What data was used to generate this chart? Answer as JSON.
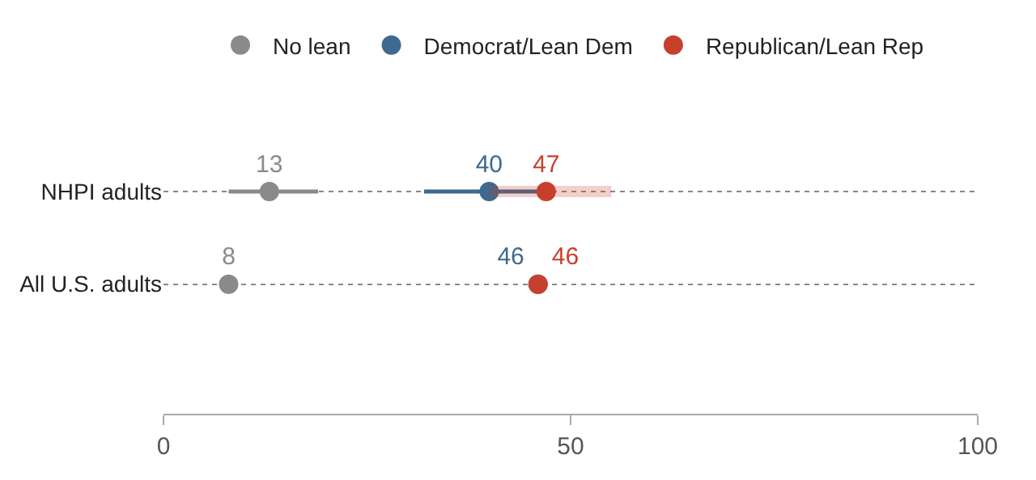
{
  "chart_data": {
    "type": "scatter",
    "orientation": "horizontal",
    "categories": [
      "NHPI adults",
      "All U.S. adults"
    ],
    "series": [
      {
        "name": "No lean",
        "color": "#8a8a8a",
        "values": [
          13,
          8
        ],
        "errors": [
          [
            8,
            19
          ],
          null
        ]
      },
      {
        "name": "Democrat/Lean Dem",
        "color": "#3d6a8e",
        "values": [
          40,
          46
        ],
        "errors": [
          [
            32,
            46
          ],
          null
        ]
      },
      {
        "name": "Republican/Lean Rep",
        "color": "#c7402d",
        "values": [
          47,
          46
        ],
        "errors": [
          [
            40,
            55
          ],
          null
        ]
      }
    ],
    "xlim": [
      0,
      100
    ],
    "xticks": [
      0,
      50,
      100
    ],
    "grid": "y",
    "legend": "top",
    "marker": "circle",
    "data_labels": true
  }
}
